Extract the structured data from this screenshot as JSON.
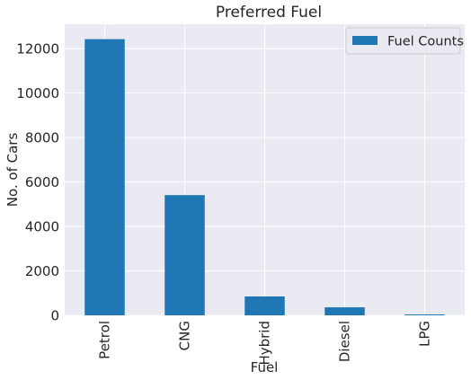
{
  "chart_data": {
    "type": "bar",
    "title": "Preferred Fuel",
    "xlabel": "Fuel",
    "ylabel": "No. of Cars",
    "categories": [
      "Petrol",
      "CNG",
      "Hybrid",
      "Diesel",
      "LPG"
    ],
    "series": [
      {
        "name": "Fuel Counts",
        "values": [
          12430,
          5410,
          850,
          360,
          40
        ]
      }
    ],
    "ylim": [
      0,
      13100
    ],
    "yticks": [
      0,
      2000,
      4000,
      6000,
      8000,
      10000,
      12000
    ],
    "yticklabels": [
      "0",
      "2000",
      "4000",
      "6000",
      "8000",
      "10000",
      "12000"
    ],
    "grid": true,
    "legend_position": "top-right",
    "colors": {
      "bar": "#1f77b4",
      "plot_background": "#eaeaf2",
      "grid": "#ffffff",
      "text": "#262626"
    }
  }
}
